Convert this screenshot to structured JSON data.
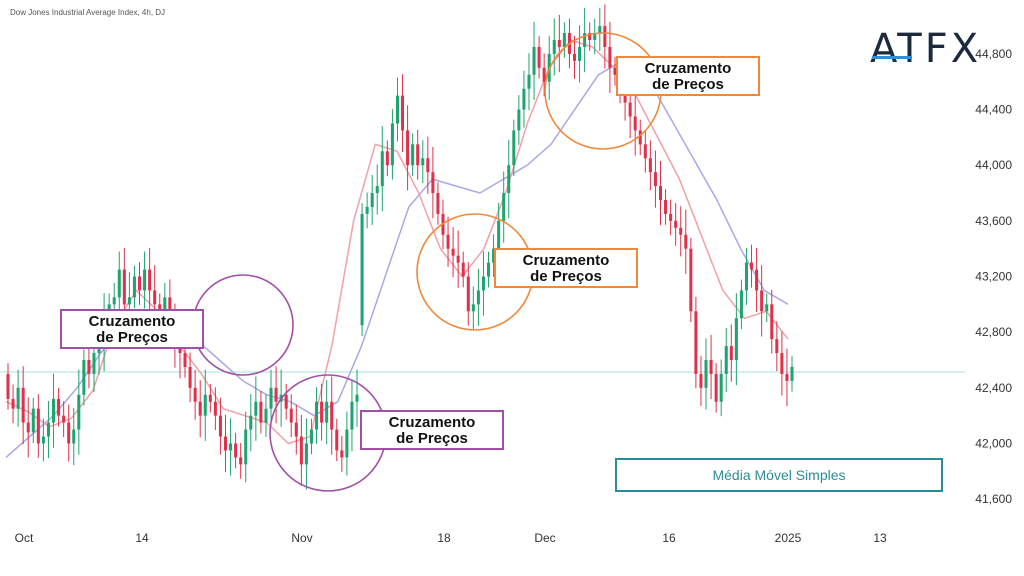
{
  "chart_header": "Dow Jones Industrial Average Index, 4h, DJ",
  "logo": "ATFX",
  "annotations": [
    {
      "text_line1": "Cruzamento",
      "text_line2": "de Preços",
      "color": "#a24fa7"
    },
    {
      "text_line1": "Cruzamento",
      "text_line2": "de Preços",
      "color": "#a24fa7"
    },
    {
      "text_line1": "Cruzamento",
      "text_line2": "de Preços",
      "color": "#f0883a"
    },
    {
      "text_line1": "Cruzamento",
      "text_line2": "de Preços",
      "color": "#f0883a"
    }
  ],
  "sma_label": "Média Móvel Simples",
  "colors": {
    "up": "#1fa36f",
    "down": "#e0314a",
    "sma_fast": "#f2a0a8",
    "sma_slow": "#a7a8e8",
    "purple": "#a24fa7",
    "orange": "#f0883a",
    "teal": "#2a8c96",
    "hline": "#a8e0dc"
  },
  "chart_data": {
    "type": "candlestick",
    "title": "Dow Jones Industrial Average Index, 4h, DJ",
    "x_ticks": [
      "Oct",
      "14",
      "Nov",
      "18",
      "Dec",
      "16",
      "2025",
      "13"
    ],
    "y_ticks": [
      41600,
      42000,
      42400,
      42800,
      43200,
      43600,
      44000,
      44400,
      44800
    ],
    "ylim": [
      41450,
      45130
    ],
    "current_price_line": 42530,
    "candles": [
      [
        42500,
        42320
      ],
      [
        42320,
        42250
      ],
      [
        42250,
        42400
      ],
      [
        42400,
        42150
      ],
      [
        42150,
        42080
      ],
      [
        42080,
        42250
      ],
      [
        42250,
        42000
      ],
      [
        42000,
        42050
      ],
      [
        42050,
        42150
      ],
      [
        42150,
        42320
      ],
      [
        42320,
        42200
      ],
      [
        42200,
        42150
      ],
      [
        42150,
        42000
      ],
      [
        42000,
        42100
      ],
      [
        42100,
        42350
      ],
      [
        42350,
        42600
      ],
      [
        42600,
        42500
      ],
      [
        42500,
        42650
      ],
      [
        42650,
        42700
      ],
      [
        42700,
        42900
      ],
      [
        42900,
        43000
      ],
      [
        43000,
        43050
      ],
      [
        43050,
        43250
      ],
      [
        43250,
        43000
      ],
      [
        43000,
        43050
      ],
      [
        43050,
        43200
      ],
      [
        43200,
        43100
      ],
      [
        43100,
        43250
      ],
      [
        43250,
        43100
      ],
      [
        43100,
        43000
      ],
      [
        43000,
        42900
      ],
      [
        42900,
        43050
      ],
      [
        43050,
        42850
      ],
      [
        42850,
        42700
      ],
      [
        42700,
        42650
      ],
      [
        42650,
        42550
      ],
      [
        42550,
        42400
      ],
      [
        42400,
        42300
      ],
      [
        42300,
        42200
      ],
      [
        42200,
        42350
      ],
      [
        42350,
        42300
      ],
      [
        42300,
        42200
      ],
      [
        42200,
        42050
      ],
      [
        42050,
        41950
      ],
      [
        41950,
        42000
      ],
      [
        42000,
        41900
      ],
      [
        41900,
        41850
      ],
      [
        41850,
        42100
      ],
      [
        42100,
        42200
      ],
      [
        42200,
        42300
      ],
      [
        42300,
        42150
      ],
      [
        42150,
        42250
      ],
      [
        42250,
        42400
      ],
      [
        42400,
        42300
      ],
      [
        42300,
        42350
      ],
      [
        42350,
        42250
      ],
      [
        42250,
        42150
      ],
      [
        42150,
        42050
      ],
      [
        42050,
        41850
      ],
      [
        41850,
        42000
      ],
      [
        42000,
        42100
      ],
      [
        42100,
        42300
      ],
      [
        42300,
        42150
      ],
      [
        42150,
        42300
      ],
      [
        42300,
        42100
      ],
      [
        42100,
        41950
      ],
      [
        41950,
        41900
      ],
      [
        41900,
        42100
      ],
      [
        42100,
        42300
      ],
      [
        42300,
        42350
      ],
      [
        42850,
        43650
      ],
      [
        43650,
        43700
      ],
      [
        43700,
        43800
      ],
      [
        43800,
        43850
      ],
      [
        43850,
        44100
      ],
      [
        44100,
        44000
      ],
      [
        44000,
        44300
      ],
      [
        44300,
        44500
      ],
      [
        44500,
        44250
      ],
      [
        44250,
        44000
      ],
      [
        44000,
        44150
      ],
      [
        44150,
        44000
      ],
      [
        44000,
        44050
      ],
      [
        44050,
        43950
      ],
      [
        43950,
        43800
      ],
      [
        43800,
        43650
      ],
      [
        43650,
        43500
      ],
      [
        43500,
        43400
      ],
      [
        43400,
        43350
      ],
      [
        43350,
        43300
      ],
      [
        43300,
        43200
      ],
      [
        43200,
        42950
      ],
      [
        42950,
        43000
      ],
      [
        43000,
        43100
      ],
      [
        43100,
        43200
      ],
      [
        43200,
        43300
      ],
      [
        43300,
        43400
      ],
      [
        43400,
        43600
      ],
      [
        43600,
        43800
      ],
      [
        43800,
        44000
      ],
      [
        44000,
        44250
      ],
      [
        44250,
        44400
      ],
      [
        44400,
        44550
      ],
      [
        44550,
        44650
      ],
      [
        44650,
        44850
      ],
      [
        44850,
        44700
      ],
      [
        44700,
        44600
      ],
      [
        44600,
        44800
      ],
      [
        44800,
        44900
      ],
      [
        44900,
        44850
      ],
      [
        44850,
        44950
      ],
      [
        44950,
        44800
      ],
      [
        44800,
        44750
      ],
      [
        44750,
        44850
      ],
      [
        44850,
        44950
      ],
      [
        44950,
        44900
      ],
      [
        44900,
        44950
      ],
      [
        44950,
        45000
      ],
      [
        45000,
        44850
      ],
      [
        44850,
        44700
      ],
      [
        44700,
        44650
      ],
      [
        44650,
        44550
      ],
      [
        44550,
        44450
      ],
      [
        44450,
        44350
      ],
      [
        44350,
        44250
      ],
      [
        44250,
        44150
      ],
      [
        44150,
        44050
      ],
      [
        44050,
        43950
      ],
      [
        43950,
        43850
      ],
      [
        43850,
        43750
      ],
      [
        43750,
        43650
      ],
      [
        43650,
        43600
      ],
      [
        43600,
        43550
      ],
      [
        43550,
        43500
      ],
      [
        43500,
        43400
      ],
      [
        43400,
        42950
      ],
      [
        42950,
        42500
      ],
      [
        42500,
        42400
      ],
      [
        42400,
        42600
      ],
      [
        42600,
        42500
      ],
      [
        42500,
        42300
      ],
      [
        42300,
        42500
      ],
      [
        42500,
        42700
      ],
      [
        42700,
        42600
      ],
      [
        42600,
        42900
      ],
      [
        42900,
        43100
      ],
      [
        43100,
        43300
      ],
      [
        43300,
        43250
      ],
      [
        43250,
        43100
      ],
      [
        43100,
        42950
      ],
      [
        42950,
        43000
      ],
      [
        43000,
        42750
      ],
      [
        42750,
        42650
      ],
      [
        42650,
        42500
      ],
      [
        42500,
        42450
      ],
      [
        42450,
        42550
      ]
    ],
    "sma_fast": [
      42300,
      42230,
      42120,
      42180,
      42380,
      42850,
      43100,
      42950,
      42700,
      42500,
      42250,
      42200,
      42150,
      42000,
      42050,
      42700,
      43600,
      44150,
      44100,
      43800,
      43400,
      43200,
      43400,
      43800,
      44300,
      44700,
      44900,
      44850,
      44700,
      44500,
      44200,
      43900,
      43500,
      43100,
      42900,
      42950,
      42750
    ],
    "sma_slow": [
      41900,
      42050,
      42200,
      42400,
      42650,
      42850,
      42950,
      42900,
      42750,
      42600,
      42450,
      42350,
      42300,
      42200,
      42300,
      42700,
      43200,
      43700,
      43900,
      43850,
      43800,
      43900,
      44000,
      44150,
      44400,
      44650,
      44750,
      44650,
      44350,
      44050,
      43750,
      43400,
      43100,
      43000
    ]
  }
}
